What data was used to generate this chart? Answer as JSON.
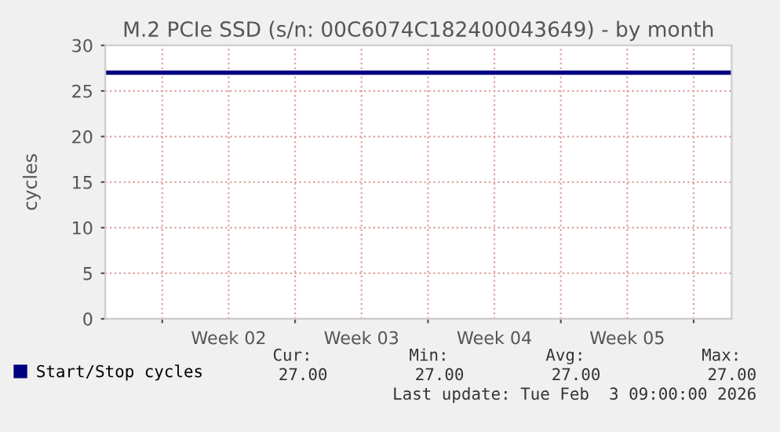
{
  "chart_data": {
    "type": "line",
    "title": "M.2 PCIe SSD (s/n: 00C6074C182400043649) - by month",
    "ylabel": "cycles",
    "series": [
      {
        "name": "Start/Stop cycles",
        "color": "#000080",
        "x": [
          "2026-01-02T00:00",
          "2026-02-04T00:00"
        ],
        "values": [
          27,
          27
        ]
      }
    ],
    "xlim": [
      "2026-01-02T00:00",
      "2026-02-04T00:00"
    ],
    "xticks": [
      {
        "value": "2026-01-05",
        "label": null
      },
      {
        "value": "2026-01-08T12:00",
        "label": "Week 02"
      },
      {
        "value": "2026-01-12",
        "label": null
      },
      {
        "value": "2026-01-15T12:00",
        "label": "Week 03"
      },
      {
        "value": "2026-01-19",
        "label": null
      },
      {
        "value": "2026-01-22T12:00",
        "label": "Week 04"
      },
      {
        "value": "2026-01-26",
        "label": null
      },
      {
        "value": "2026-01-29T12:00",
        "label": "Week 05"
      },
      {
        "value": "2026-02-02",
        "label": null
      }
    ],
    "ylim": [
      0,
      30
    ],
    "yticks": [
      0,
      5,
      10,
      15,
      20,
      25,
      30
    ],
    "grid": true,
    "legend": "bottom left",
    "annotations": [
      "Cur:",
      "Min:",
      "Avg:",
      "Max:",
      "27.00",
      "27.00",
      "27.00",
      "27.00",
      "Last update: Tue Feb  3 09:00:00 2026"
    ]
  }
}
